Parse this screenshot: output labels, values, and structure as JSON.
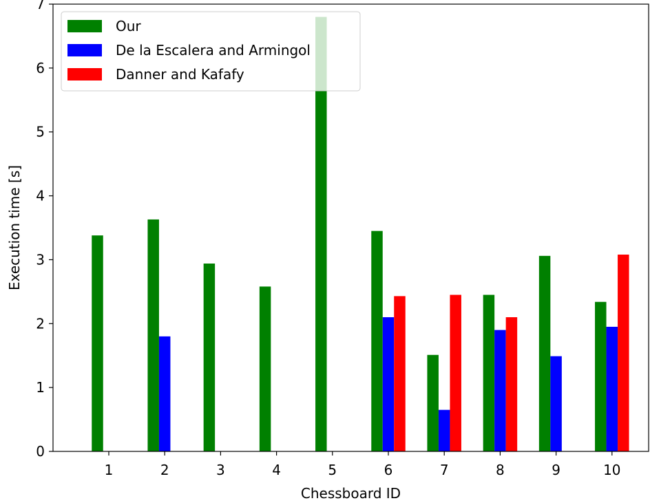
{
  "chart_data": {
    "type": "bar",
    "title": "",
    "xlabel": "Chessboard ID",
    "ylabel": "Execution time [s]",
    "categories": [
      "1",
      "2",
      "3",
      "4",
      "5",
      "6",
      "7",
      "8",
      "9",
      "10"
    ],
    "ylim": [
      0,
      7
    ],
    "yticks": [
      "0",
      "1",
      "2",
      "3",
      "4",
      "5",
      "6",
      "7"
    ],
    "grid": false,
    "legend_position": "top-left",
    "series": [
      {
        "name": "Our",
        "color": "#008000",
        "values": [
          3.38,
          3.63,
          2.94,
          2.58,
          6.8,
          3.45,
          1.51,
          2.45,
          3.06,
          2.34
        ]
      },
      {
        "name": "De la Escalera and Armingol",
        "color": "#0000ff",
        "values": [
          null,
          1.8,
          null,
          null,
          null,
          2.1,
          0.65,
          1.9,
          1.49,
          1.95
        ]
      },
      {
        "name": "Danner and Kafafy",
        "color": "#ff0000",
        "values": [
          null,
          null,
          null,
          null,
          null,
          2.43,
          2.45,
          2.1,
          null,
          3.08
        ]
      }
    ]
  }
}
